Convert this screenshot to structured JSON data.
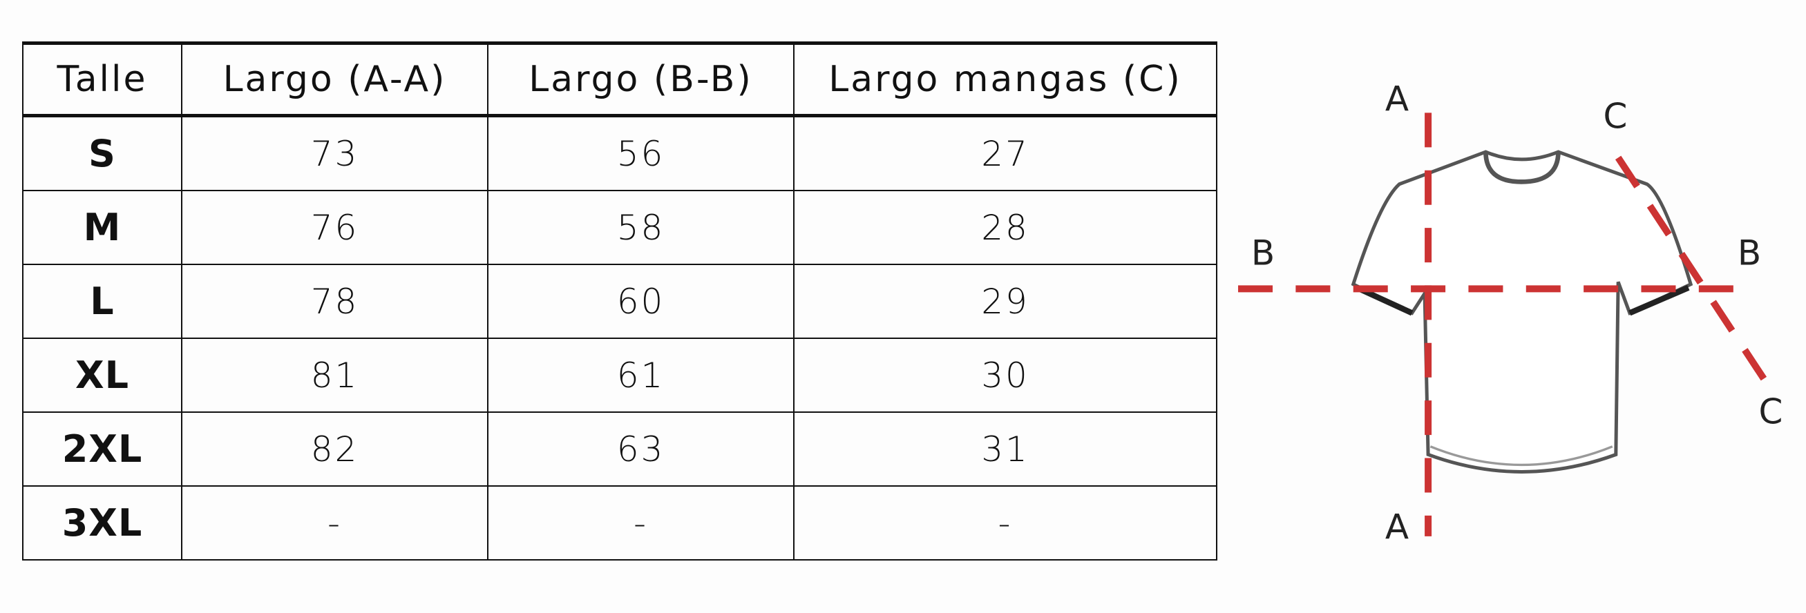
{
  "table": {
    "header": [
      "Talle",
      "Largo (A-A)",
      "Largo (B-B)",
      "Largo mangas (C)"
    ],
    "rows": [
      [
        "S",
        "73",
        "56",
        "27"
      ],
      [
        "M",
        "76",
        "58",
        "28"
      ],
      [
        "L",
        "78",
        "60",
        "29"
      ],
      [
        "XL",
        "81",
        "61",
        "30"
      ],
      [
        "2XL",
        "82",
        "63",
        "31"
      ],
      [
        "3XL",
        "-",
        "-",
        "-"
      ]
    ]
  },
  "diagram": {
    "labels": [
      "A",
      "A",
      "B",
      "B",
      "C",
      "C"
    ]
  }
}
